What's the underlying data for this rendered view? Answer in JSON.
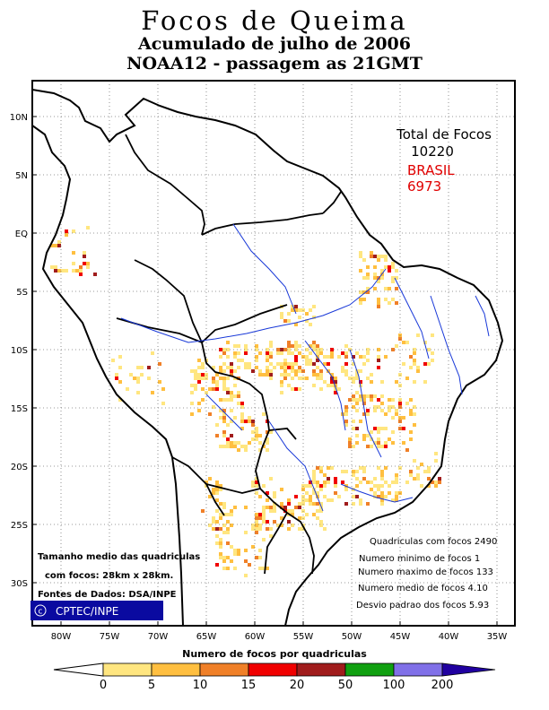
{
  "title": {
    "line1": "Focos de Queima",
    "line2": "Acumulado de julho de 2006",
    "line3": "NOAA12 - passagem as 21GMT"
  },
  "totals": {
    "total_label": "Total de Focos",
    "total_value": "10220",
    "country_label": "BRASIL",
    "country_value": "6973"
  },
  "stats": [
    "Quadriculas com focos 2490",
    "Numero minimo de focos 1",
    "Numero maximo de focos 133",
    "Numero medio de focos 4.10",
    "Desvio padrao dos focos 5.93"
  ],
  "grid_info": {
    "line1": "Tamanho medio das quadriculas",
    "line2": "com focos: 28km x 28km.",
    "sources": "Fontes de Dados: DSA/INPE",
    "logo": "CPTEC/INPE"
  },
  "lat_labels": [
    "10N",
    "5N",
    "EQ",
    "5S",
    "10S",
    "15S",
    "20S",
    "25S",
    "30S"
  ],
  "lon_labels": [
    "80W",
    "75W",
    "70W",
    "65W",
    "60W",
    "55W",
    "50W",
    "45W",
    "40W",
    "35W"
  ],
  "legend": {
    "title": "Numero de focos por quadriculas",
    "ticks": [
      "0",
      "5",
      "10",
      "15",
      "20",
      "50",
      "100",
      "200"
    ],
    "colors": [
      "#ffe680",
      "#ffbf40",
      "#f08028",
      "#f00000",
      "#a01c1c",
      "#10a010",
      "#8070e8",
      "#2000a0"
    ]
  },
  "colors": {
    "total": "#000000",
    "brasil": "#e00000",
    "rivers": "#1838d8",
    "logo_bg": "#0a0aa0"
  }
}
